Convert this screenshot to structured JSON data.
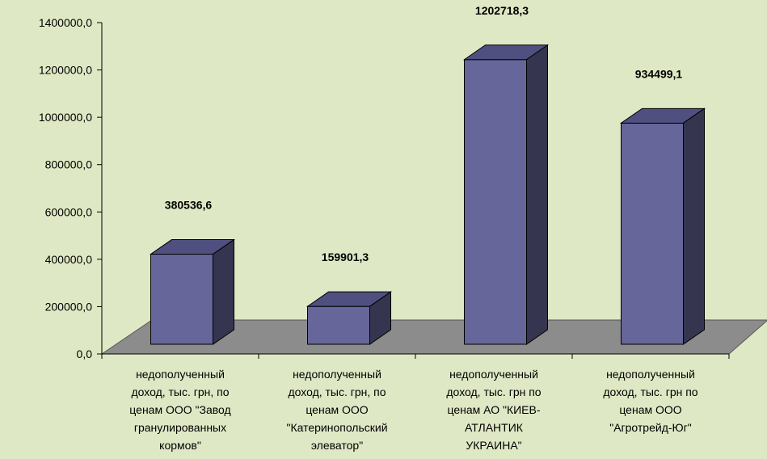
{
  "chart_data": {
    "type": "bar",
    "title": "",
    "xlabel": "",
    "ylabel": "",
    "ylim": [
      0,
      1400000
    ],
    "y_ticks": [
      0,
      200000,
      400000,
      600000,
      800000,
      1000000,
      1200000,
      1400000
    ],
    "y_tick_labels": [
      "0,0",
      "200000,0",
      "400000,0",
      "600000,0",
      "800000,0",
      "1000000,0",
      "1200000,0",
      "1400000,0"
    ],
    "grid": false,
    "legend": "none",
    "categories": [
      "недополученный доход, тыс. грн, по ценам ООО \"Завод гранулированных кормов\"",
      "недополученный доход, тыс. грн, по ценам ООО \"Катеринопольский элеватор\"",
      "недополученный доход, тыс. грн по ценам АО \"КИЕВ-АТЛАНТИК УКРАИНА\"",
      "недополученный доход, тыс. грн по ценам ООО \"Агротрейд-Юг\""
    ],
    "category_lines": [
      [
        "недополученный",
        "доход, тыс. грн, по",
        "ценам ООО \"Завод",
        "гранулированных",
        "кормов\""
      ],
      [
        "недополученный",
        "доход, тыс. грн, по",
        "ценам ООО",
        "\"Катеринопольский",
        "элеватор\""
      ],
      [
        "недополученный",
        "доход, тыс. грн по",
        "ценам АО \"КИЕВ-",
        "АТЛАНТИК",
        "УКРАИНА\""
      ],
      [
        "недополученный",
        "доход, тыс. грн по",
        "ценам ООО",
        "\"Агротрейд-Юг\""
      ]
    ],
    "values": [
      380536.6,
      159901.3,
      1202718.3,
      934499.1
    ],
    "value_labels": [
      "380536,6",
      "159901,3",
      "1202718,3",
      "934499,1"
    ],
    "colors": {
      "background": "#dfe8c4",
      "bar_front": "#66669a",
      "bar_top": "#4f4f80",
      "bar_side": "#35354f",
      "floor": "#8c8c8c",
      "axis": "#000000"
    }
  }
}
